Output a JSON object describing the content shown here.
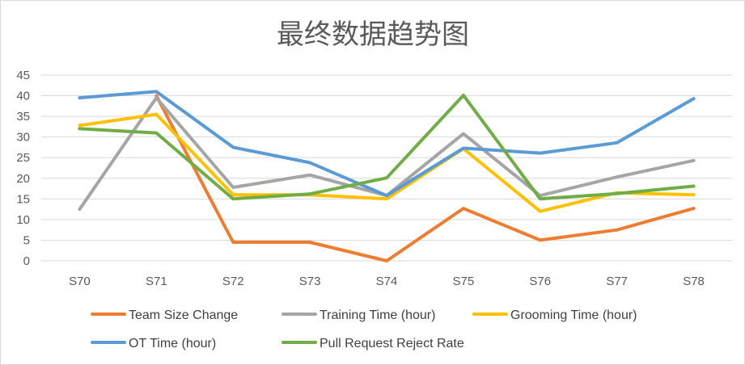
{
  "chart_data": {
    "type": "line",
    "title": "最终数据趋势图",
    "categories": [
      "S70",
      "S71",
      "S72",
      "S73",
      "S74",
      "S75",
      "S76",
      "S77",
      "S78"
    ],
    "y_ticks": [
      "0",
      "5",
      "10",
      "15",
      "20",
      "25",
      "30",
      "35",
      "40",
      "45"
    ],
    "ylim": [
      0,
      45
    ],
    "grid": true,
    "legend_position": "bottom",
    "series": [
      {
        "name": "Team Size Change",
        "color": "#ED7D31",
        "values": [
          null,
          40,
          4.5,
          4.5,
          0,
          12.7,
          5,
          7.5,
          12.7
        ]
      },
      {
        "name": "Training Time (hour)",
        "color": "#A5A5A5",
        "values": [
          12.5,
          39.5,
          17.8,
          20.8,
          15.8,
          30.8,
          15.8,
          20.3,
          24.3
        ]
      },
      {
        "name": "Grooming Time (hour)",
        "color": "#FFC000",
        "values": [
          32.8,
          35.5,
          16.0,
          16.0,
          15.0,
          27.2,
          12.0,
          16.5,
          16.0
        ]
      },
      {
        "name": "OT Time  (hour)",
        "color": "#5B9BD5",
        "values": [
          39.5,
          41.0,
          27.5,
          23.8,
          15.8,
          27.3,
          26.1,
          28.6,
          39.3
        ]
      },
      {
        "name": "Pull Request Reject Rate",
        "color": "#70AD47",
        "values": [
          32.0,
          31.0,
          15.0,
          16.2,
          20.1,
          40.1,
          15.0,
          16.3,
          18.1
        ]
      }
    ]
  }
}
